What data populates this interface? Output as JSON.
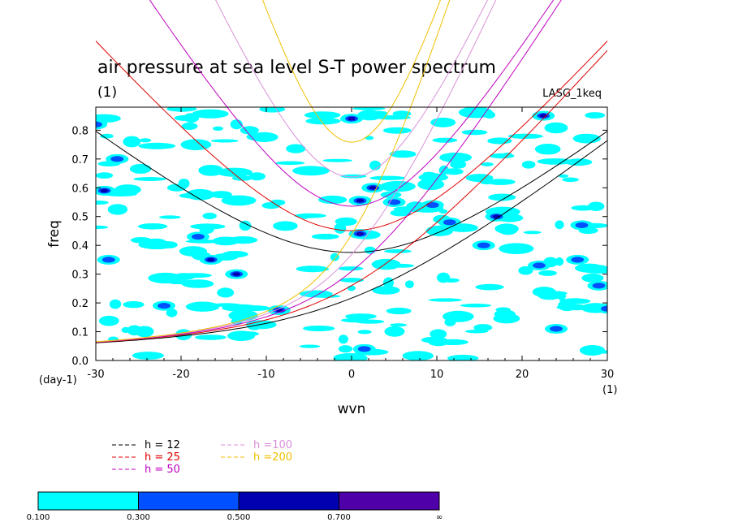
{
  "chart_data": {
    "type": "heatmap",
    "title": "air pressure at sea level S-T power spectrum",
    "subtitle": "(1)",
    "run_label": "LASG_1keq",
    "xlabel": "wvn",
    "ylabel": "freq",
    "x_unit": "(1)",
    "y_unit": "(day-1)",
    "xlim": [
      -30,
      30
    ],
    "ylim": [
      0,
      0.88
    ],
    "x_ticks": [
      -30,
      -20,
      -10,
      0,
      10,
      20,
      30
    ],
    "y_ticks": [
      0.0,
      0.1,
      0.2,
      0.3,
      0.4,
      0.5,
      0.6,
      0.7,
      0.8
    ],
    "dispersion_curves": [
      {
        "name": "h = 12",
        "h": 12,
        "color": "#000000"
      },
      {
        "name": "h = 25",
        "h": 25,
        "color": "#e00000"
      },
      {
        "name": "h = 50",
        "h": 50,
        "color": "#c000c0"
      },
      {
        "name": "h =100",
        "h": 100,
        "color": "#d890d8"
      },
      {
        "name": "h =200",
        "h": 200,
        "color": "#f0c000"
      }
    ],
    "colorbar": {
      "levels": [
        "0.100",
        "0.300",
        "0.500",
        "0.700",
        "∞"
      ],
      "colors": [
        "#00ffff",
        "#0050ff",
        "#0000b0",
        "#5000a8"
      ]
    },
    "blobs": [
      {
        "x": 0.0,
        "y": 0.84,
        "level": 3
      },
      {
        "x": -30.0,
        "y": 0.82,
        "level": 1
      },
      {
        "x": -27.5,
        "y": 0.7,
        "level": 1
      },
      {
        "x": -29.0,
        "y": 0.59,
        "level": 2
      },
      {
        "x": -18.0,
        "y": 0.43,
        "level": 1
      },
      {
        "x": -16.5,
        "y": 0.35,
        "level": 2
      },
      {
        "x": -13.5,
        "y": 0.3,
        "level": 2
      },
      {
        "x": -8.5,
        "y": 0.175,
        "level": 2
      },
      {
        "x": 1.0,
        "y": 0.44,
        "level": 3
      },
      {
        "x": 2.5,
        "y": 0.6,
        "level": 2
      },
      {
        "x": 1.0,
        "y": 0.555,
        "level": 2
      },
      {
        "x": 5.0,
        "y": 0.55,
        "level": 1
      },
      {
        "x": 9.5,
        "y": 0.54,
        "level": 1
      },
      {
        "x": 11.5,
        "y": 0.48,
        "level": 1
      },
      {
        "x": 17.0,
        "y": 0.5,
        "level": 2
      },
      {
        "x": 15.5,
        "y": 0.4,
        "level": 1
      },
      {
        "x": 22.0,
        "y": 0.33,
        "level": 1
      },
      {
        "x": 22.5,
        "y": 0.85,
        "level": 2
      },
      {
        "x": 26.5,
        "y": 0.35,
        "level": 1
      },
      {
        "x": 27.0,
        "y": 0.47,
        "level": 1
      },
      {
        "x": 29.0,
        "y": 0.26,
        "level": 1
      },
      {
        "x": 30.0,
        "y": 0.18,
        "level": 1
      },
      {
        "x": 1.5,
        "y": 0.04,
        "level": 1
      },
      {
        "x": 24.0,
        "y": 0.11,
        "level": 1
      },
      {
        "x": -28.5,
        "y": 0.35,
        "level": 1
      },
      {
        "x": -22.0,
        "y": 0.19,
        "level": 1
      }
    ]
  }
}
